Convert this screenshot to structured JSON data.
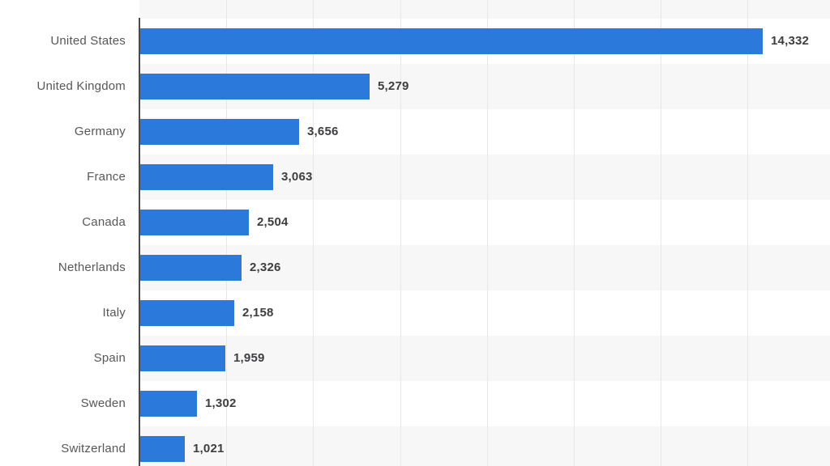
{
  "chart_data": {
    "type": "bar",
    "orientation": "horizontal",
    "title": "",
    "xlabel": "",
    "ylabel": "",
    "categories": [
      "United States",
      "United Kingdom",
      "Germany",
      "France",
      "Canada",
      "Netherlands",
      "Italy",
      "Spain",
      "Sweden",
      "Switzerland"
    ],
    "values": [
      14332,
      5279,
      3656,
      3063,
      2504,
      2326,
      2158,
      1959,
      1302,
      1021
    ],
    "value_labels": [
      "14,332",
      "5,279",
      "3,656",
      "3,063",
      "2,504",
      "2,326",
      "2,158",
      "1,959",
      "1,302",
      "1,021"
    ],
    "xlim": [
      0,
      16000
    ],
    "gridline_step": 2000,
    "grid": true,
    "legend": false,
    "row_bands_alternating": true,
    "colors": {
      "bar": "#2b79db",
      "band_alt": "#f7f7f7",
      "gridline": "#e8e8e8",
      "axis": "#4a4a4c",
      "category_label": "#57575a",
      "value_label": "#3e3e40",
      "background": "#ffffff"
    }
  }
}
